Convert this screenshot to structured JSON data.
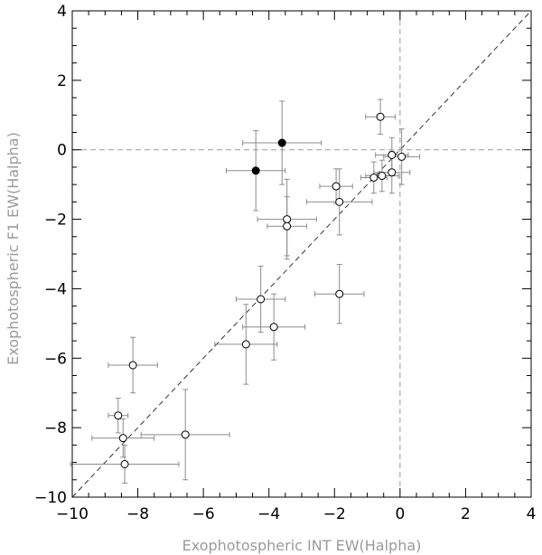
{
  "chart_data": {
    "type": "scatter",
    "title": "",
    "xlabel": "Exophotospheric INT EW(Halpha)",
    "ylabel": "Exophotospheric F1 EW(Halpha)",
    "xlim": [
      -10,
      4
    ],
    "ylim": [
      -10,
      4
    ],
    "x_ticks": [
      -10,
      -8,
      -6,
      -4,
      -2,
      0,
      2,
      4
    ],
    "y_ticks": [
      -10,
      -8,
      -6,
      -4,
      -2,
      0,
      2,
      4
    ],
    "x_tick_labels": [
      "−10",
      "−8",
      "−6",
      "−4",
      "−2",
      "0",
      "2",
      "4"
    ],
    "y_tick_labels": [
      "−10",
      "−8",
      "−6",
      "−4",
      "−2",
      "0",
      "2",
      "4"
    ],
    "reference_lines": [
      {
        "kind": "diagonal",
        "equation": "y = x",
        "style": "dashed"
      },
      {
        "kind": "horizontal",
        "value": 0,
        "style": "dashed"
      },
      {
        "kind": "vertical",
        "value": 0,
        "style": "dashed"
      }
    ],
    "grid": false,
    "series": [
      {
        "marker": "open-circle",
        "points": [
          {
            "x": -0.6,
            "y": 0.95,
            "xerr": 0.45,
            "yerr": 0.5
          },
          {
            "x": -0.25,
            "y": -0.15,
            "xerr": 0.5,
            "yerr": 0.5
          },
          {
            "x": 0.05,
            "y": -0.2,
            "xerr": 0.55,
            "yerr": 0.8
          },
          {
            "x": -0.25,
            "y": -0.65,
            "xerr": 0.55,
            "yerr": 0.6
          },
          {
            "x": -0.55,
            "y": -0.75,
            "xerr": 0.5,
            "yerr": 0.45
          },
          {
            "x": -0.8,
            "y": -0.8,
            "xerr": 0.4,
            "yerr": 0.45
          },
          {
            "x": -1.95,
            "y": -1.05,
            "xerr": 0.5,
            "yerr": 0.5
          },
          {
            "x": -1.85,
            "y": -1.5,
            "xerr": 1.0,
            "yerr": 0.95
          },
          {
            "x": -3.45,
            "y": -2.0,
            "xerr": 0.9,
            "yerr": 1.15
          },
          {
            "x": -3.45,
            "y": -2.2,
            "xerr": 0.6,
            "yerr": 0.85
          },
          {
            "x": -4.25,
            "y": -4.3,
            "xerr": 0.75,
            "yerr": 0.95
          },
          {
            "x": -1.85,
            "y": -4.15,
            "xerr": 0.75,
            "yerr": 0.85
          },
          {
            "x": -3.85,
            "y": -5.1,
            "xerr": 0.95,
            "yerr": 0.95
          },
          {
            "x": -4.7,
            "y": -5.6,
            "xerr": 0.95,
            "yerr": 1.15
          },
          {
            "x": -8.15,
            "y": -6.2,
            "xerr": 0.75,
            "yerr": 0.8
          },
          {
            "x": -8.6,
            "y": -7.65,
            "xerr": 0.3,
            "yerr": 0.5
          },
          {
            "x": -8.45,
            "y": -8.3,
            "xerr": 0.95,
            "yerr": 0.55
          },
          {
            "x": -6.55,
            "y": -8.2,
            "xerr": 1.35,
            "yerr": 1.3
          },
          {
            "x": -8.4,
            "y": -9.05,
            "xerr": 1.65,
            "yerr": 0.55
          }
        ]
      },
      {
        "marker": "filled-circle",
        "points": [
          {
            "x": -3.6,
            "y": 0.2,
            "xerr": 1.2,
            "yerr": 1.2
          },
          {
            "x": -4.4,
            "y": -0.6,
            "xerr": 0.9,
            "yerr": 1.15
          }
        ]
      }
    ]
  }
}
